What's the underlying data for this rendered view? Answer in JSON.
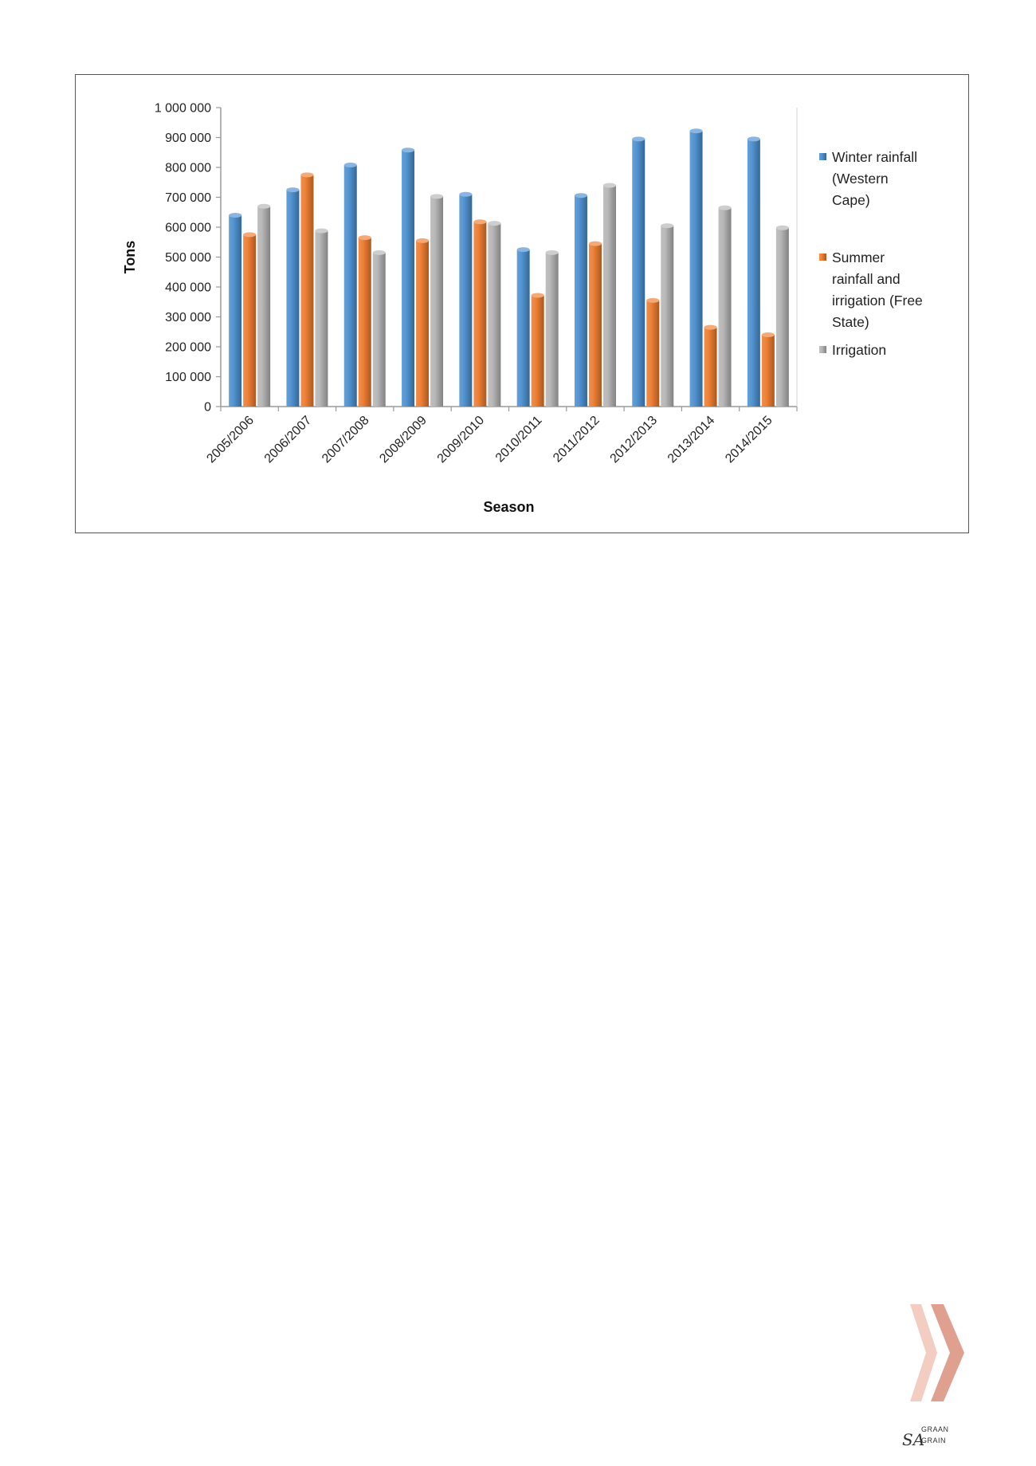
{
  "chart_data": {
    "type": "bar",
    "title": "",
    "xlabel": "Season",
    "ylabel": "Tons",
    "ylim": [
      0,
      1000000
    ],
    "yticks": [
      {
        "value": 0,
        "label": "0"
      },
      {
        "value": 100000,
        "label": "100 000"
      },
      {
        "value": 200000,
        "label": "200 000"
      },
      {
        "value": 300000,
        "label": "300 000"
      },
      {
        "value": 400000,
        "label": "400 000"
      },
      {
        "value": 500000,
        "label": "500 000"
      },
      {
        "value": 600000,
        "label": "600 000"
      },
      {
        "value": 700000,
        "label": "700 000"
      },
      {
        "value": 800000,
        "label": "800 000"
      },
      {
        "value": 900000,
        "label": "900 000"
      },
      {
        "value": 1000000,
        "label": "1 000 000"
      }
    ],
    "categories": [
      "2005/2006",
      "2006/2007",
      "2007/2008",
      "2008/2009",
      "2009/2010",
      "2010/2011",
      "2011/2012",
      "2012/2013",
      "2013/2014",
      "2014/2015"
    ],
    "series": [
      {
        "name": "Winter rainfall (Western Cape)",
        "legend_lines": [
          "Winter rainfall",
          "(Western",
          "Cape)"
        ],
        "color": "#4a8fd0",
        "values": [
          640000,
          725000,
          808000,
          858000,
          710000,
          525000,
          706000,
          895000,
          922000,
          895000
        ]
      },
      {
        "name": "Summer rainfall and irrigation (Free State)",
        "legend_lines": [
          "Summer",
          "rainfall and",
          "irrigation (Free",
          "State)"
        ],
        "color": "#ee7a2c",
        "values": [
          575000,
          775000,
          565000,
          555000,
          618000,
          372000,
          545000,
          355000,
          265000,
          240000
        ]
      },
      {
        "name": "Irrigation",
        "legend_lines": [
          "Irrigation"
        ],
        "color": "#b4b4b4",
        "values": [
          670000,
          588000,
          515000,
          703000,
          613000,
          515000,
          740000,
          605000,
          665000,
          598000
        ]
      }
    ],
    "grid": false,
    "legend_position": "right"
  },
  "decor": {
    "chevron_color": "#e0a090"
  },
  "logo": {
    "top": "GRAAN",
    "sa": "SA",
    "bottom": "GRAIN"
  }
}
